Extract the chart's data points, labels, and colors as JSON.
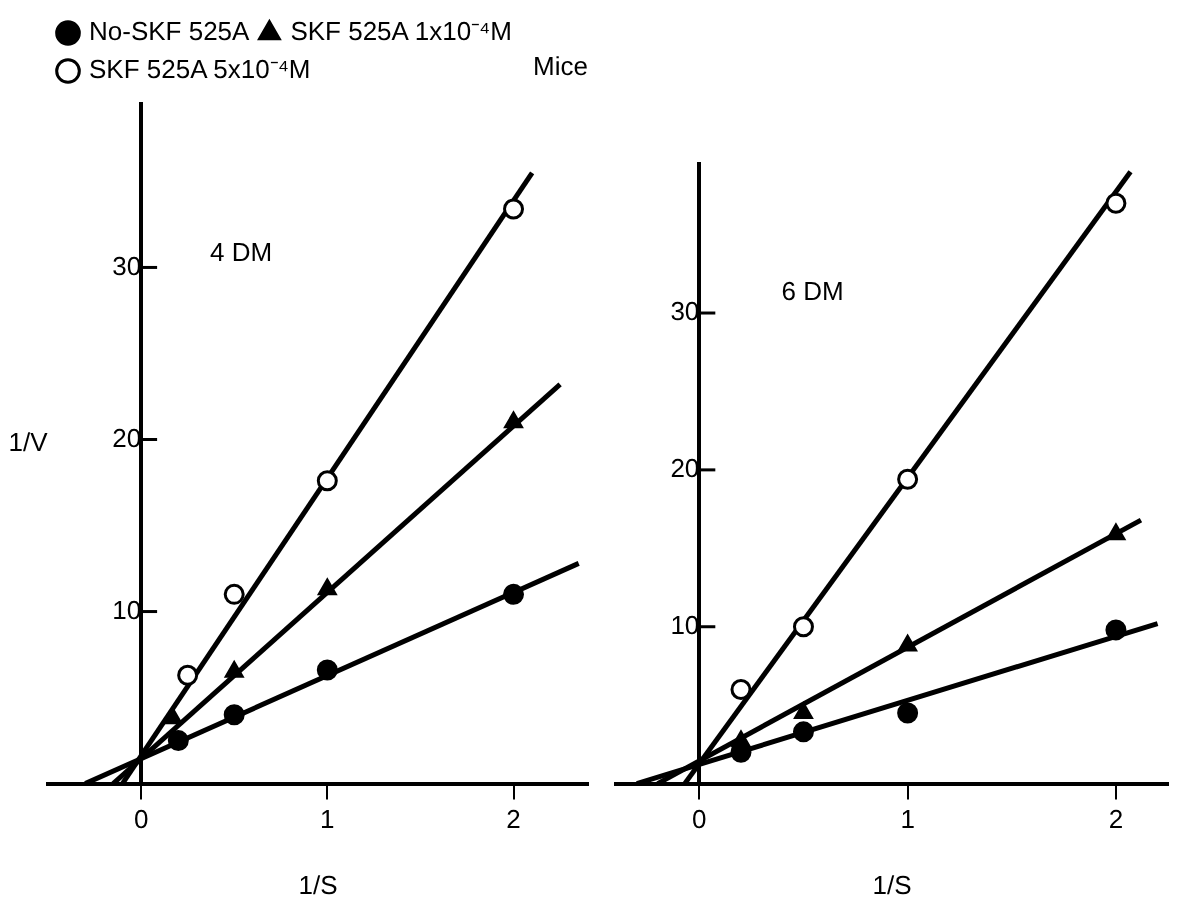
{
  "chart_data": [
    {
      "type": "scatter",
      "title": "Mice",
      "xlabel": "1/S",
      "ylabel": "1/V",
      "annotations": [
        "4 DM"
      ],
      "xlim": [
        -0.5,
        2.4
      ],
      "ylim": [
        0,
        39.5
      ],
      "xticks": [
        0,
        1,
        2
      ],
      "yticks": [
        10,
        20,
        30
      ],
      "grid": false,
      "legend": "top left",
      "line_style": "solid",
      "series": [
        {
          "name": "No-SKF 525A",
          "color": "#000000",
          "marker": "circle",
          "x": [
            0.2,
            0.5,
            1,
            2
          ],
          "values": [
            2.5,
            4,
            6.6,
            11
          ]
        },
        {
          "name": "SKF 525A 1x10⁻⁴M",
          "color": "#000000",
          "marker": "triangle",
          "x": [
            0.17,
            0.5,
            1,
            2
          ],
          "values": [
            3.8,
            6.5,
            11.3,
            21
          ]
        },
        {
          "name": "SKF 525A 5x10⁻⁴M",
          "color": "#ffffff",
          "marker": "circle",
          "x": [
            0.25,
            0.5,
            1,
            2
          ],
          "values": [
            6.3,
            11,
            17.6,
            33.4
          ]
        },
        {
          "type": "line",
          "color": "#000000",
          "marker": "none",
          "x": [
            -0.3,
            2.35
          ],
          "values": [
            0,
            12.8
          ]
        },
        {
          "type": "line",
          "color": "#000000",
          "marker": "none",
          "x": [
            -0.15,
            2.25
          ],
          "values": [
            0,
            23.2
          ]
        },
        {
          "type": "line",
          "color": "#000000",
          "marker": "none",
          "x": [
            -0.1,
            2.1
          ],
          "values": [
            0,
            35.5
          ]
        }
      ]
    },
    {
      "type": "scatter",
      "xlabel": "1/S",
      "annotations": [
        "6 DM"
      ],
      "xlim": [
        -0.4,
        2.25
      ],
      "ylim": [
        0,
        39.5
      ],
      "xticks": [
        0,
        1,
        2
      ],
      "yticks": [
        10,
        20,
        30
      ],
      "grid": false,
      "line_style": "solid",
      "series": [
        {
          "color": "#000000",
          "marker": "circle",
          "x": [
            0.2,
            0.5,
            1,
            2
          ],
          "values": [
            2,
            3.3,
            4.5,
            9.8
          ]
        },
        {
          "color": "#000000",
          "marker": "triangle",
          "x": [
            0.2,
            0.5,
            1,
            2
          ],
          "values": [
            2.7,
            4.5,
            8.8,
            15.9
          ]
        },
        {
          "color": "#ffffff",
          "marker": "circle",
          "x": [
            0.2,
            0.5,
            1,
            2
          ],
          "values": [
            6,
            10,
            19.4,
            37
          ]
        },
        {
          "type": "line",
          "color": "#000000",
          "marker": "none",
          "x": [
            -0.3,
            2.2
          ],
          "values": [
            0,
            10.2
          ]
        },
        {
          "type": "line",
          "color": "#000000",
          "marker": "none",
          "x": [
            -0.2,
            2.12
          ],
          "values": [
            0,
            16.8
          ]
        },
        {
          "type": "line",
          "color": "#000000",
          "marker": "none",
          "x": [
            -0.07,
            2.07
          ],
          "values": [
            0,
            39
          ]
        }
      ]
    }
  ]
}
